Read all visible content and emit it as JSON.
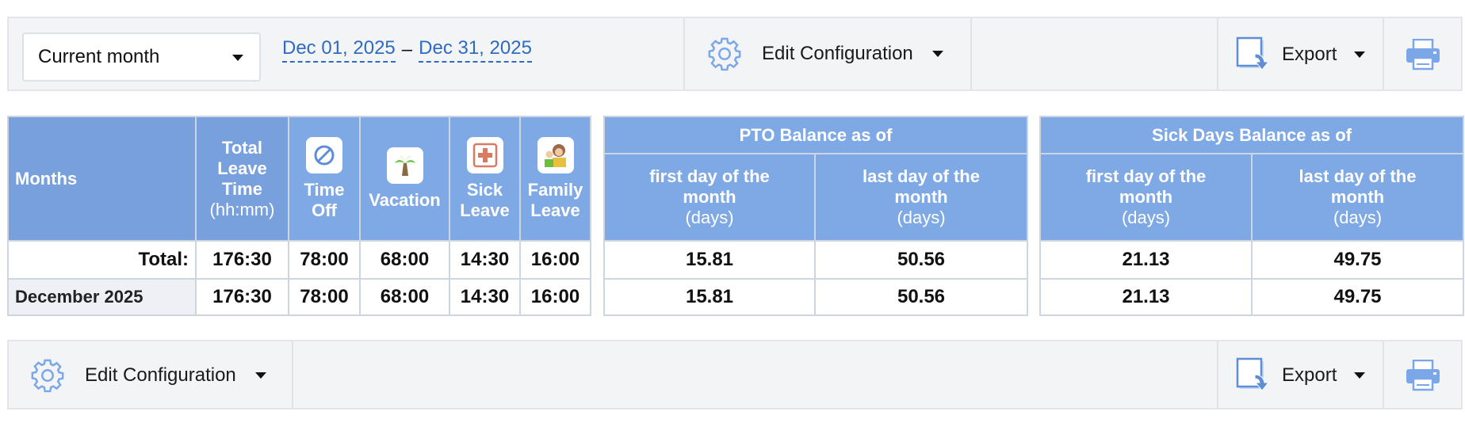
{
  "toolbar_top": {
    "period_select": "Current month",
    "date_from": "Dec 01, 2025",
    "date_sep": "–",
    "date_to": "Dec 31, 2025",
    "edit_config": "Edit Configuration",
    "export": "Export"
  },
  "leave_table": {
    "headers": {
      "months": "Months",
      "total_1": "Total",
      "total_2": "Leave",
      "total_3": "Time",
      "total_4": "(hh:mm)",
      "time_off_1": "Time",
      "time_off_2": "Off",
      "vacation": "Vacation",
      "sick_1": "Sick",
      "sick_2": "Leave",
      "family_1": "Family",
      "family_2": "Leave"
    },
    "rows": [
      {
        "label": "Total:",
        "total": "176:30",
        "time_off": "78:00",
        "vacation": "68:00",
        "sick": "14:30",
        "family": "16:00"
      },
      {
        "label": "December 2025",
        "total": "176:30",
        "time_off": "78:00",
        "vacation": "68:00",
        "sick": "14:30",
        "family": "16:00"
      }
    ]
  },
  "pto_table": {
    "title": "PTO Balance as of",
    "col1_1": "first day of the",
    "col1_2": "month",
    "col1_3": "(days)",
    "col2_1": "last day of the",
    "col2_2": "month",
    "col2_3": "(days)",
    "rows": [
      {
        "first": "15.81",
        "last": "50.56"
      },
      {
        "first": "15.81",
        "last": "50.56"
      }
    ]
  },
  "sick_table": {
    "title": "Sick Days Balance as of",
    "col1_1": "first day of the",
    "col1_2": "month",
    "col1_3": "(days)",
    "col2_1": "last day of the",
    "col2_2": "month",
    "col2_3": "(days)",
    "rows": [
      {
        "first": "21.13",
        "last": "49.75"
      },
      {
        "first": "21.13",
        "last": "49.75"
      }
    ]
  },
  "toolbar_bottom": {
    "edit_config": "Edit Configuration",
    "export": "Export"
  }
}
